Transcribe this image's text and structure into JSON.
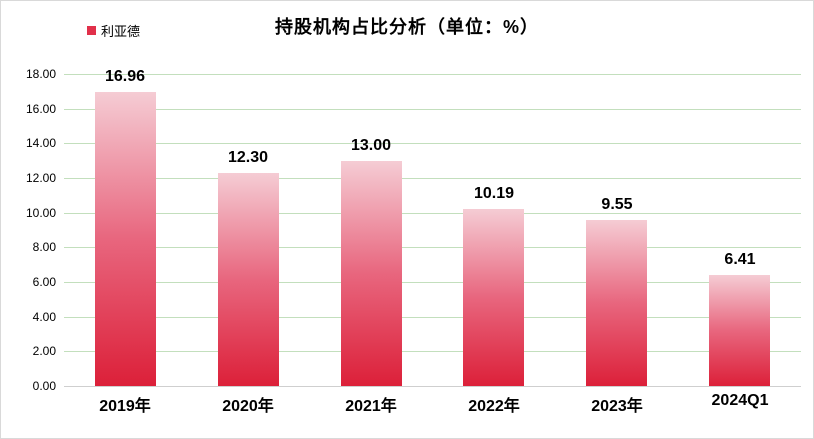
{
  "title": "持股机构占比分析（单位：%）",
  "legend": {
    "label": "利亚德"
  },
  "colors": {
    "bar_gradient_top": "#f5ccd4",
    "bar_gradient_mid": "#e8667e",
    "bar_gradient_bottom": "#dc2039",
    "gridline": "#c3dfbd",
    "axis_line": "#cfcfcf",
    "legend_marker": "#e1304a",
    "frame_border": "#d9d9d9",
    "text": "#000000"
  },
  "chart_data": {
    "type": "bar",
    "title": "持股机构占比分析（单位：%）",
    "series_name": "利亚德",
    "categories": [
      "2019年",
      "2020年",
      "2021年",
      "2022年",
      "2023年",
      "2024Q1"
    ],
    "values": [
      16.96,
      12.3,
      13.0,
      10.19,
      9.55,
      6.41
    ],
    "value_labels": [
      "16.96",
      "12.30",
      "13.00",
      "10.19",
      "9.55",
      "6.41"
    ],
    "xlabel": "",
    "ylabel": "",
    "ylim": [
      0,
      18
    ],
    "ytick_step": 2,
    "yticks": [
      "18.00",
      "16.00",
      "14.00",
      "12.00",
      "10.00",
      "8.00",
      "6.00",
      "4.00",
      "2.00",
      "0.00"
    ],
    "grid": true,
    "legend_position": "top-left"
  }
}
